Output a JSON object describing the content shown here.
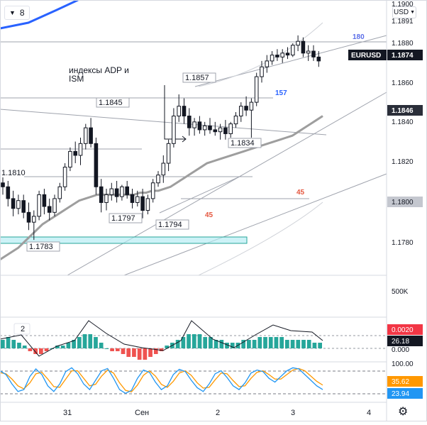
{
  "toolbar": {
    "interval": "8",
    "currency": "USD"
  },
  "price_axis": {
    "ticks": [
      "1.1900",
      "1.1891",
      "1.1880",
      "1.1860",
      "1.1840",
      "1.1820",
      "1.1800",
      "1.1780"
    ],
    "badges": [
      {
        "name": "last-price-badge",
        "label": "EURUSD",
        "value": "1.1874",
        "bg": "#131722",
        "fg": "#ffffff"
      },
      {
        "name": "level-1846-badge",
        "value": "1.1846",
        "bg": "#2a2e39",
        "fg": "#ffffff"
      },
      {
        "name": "level-1800-badge",
        "value": "1.1800",
        "bg": "#c4c7cf",
        "fg": "#131722"
      }
    ]
  },
  "annotations": {
    "text_note": [
      "индексы ADP  и",
      "ISM"
    ],
    "level_labels": [
      "1.1845",
      "1.1857",
      "1.1810",
      "1.1834",
      "1.1797",
      "1.1794",
      "1.1783"
    ],
    "angle_labels": [
      {
        "text": "180",
        "color": "#5b6ee8"
      },
      {
        "text": "157",
        "color": "#2962ff"
      },
      {
        "text": "45",
        "color": "#e5573f"
      },
      {
        "text": "45",
        "color": "#e5573f"
      }
    ]
  },
  "volume_pane": {
    "axis_label": "500K"
  },
  "macd_pane": {
    "legend": "2",
    "axis_label": "0.000",
    "badges": [
      "0.0020",
      "26.18"
    ],
    "badge_colors": [
      "#f23645",
      "#131722"
    ]
  },
  "stoch_pane": {
    "axis_label": "100.00",
    "badges": [
      "35.62",
      "23.94"
    ],
    "badge_colors": [
      "#ff9800",
      "#2196f3"
    ]
  },
  "time_axis": {
    "labels": [
      "31",
      "Сен",
      "2",
      "3",
      "4"
    ]
  },
  "colors": {
    "up": "#131722",
    "down": "#131722",
    "macd_up": "#26a69a",
    "macd_down": "#ef5350",
    "ma": "#9e9e9e"
  },
  "chart_data": {
    "type": "candlestick",
    "symbol": "EURUSD",
    "y_range": [
      1.1765,
      1.1905
    ],
    "candles": [
      [
        1.1812,
        1.1815,
        1.1806,
        1.181
      ],
      [
        1.181,
        1.1813,
        1.18,
        1.1804
      ],
      [
        1.1804,
        1.1808,
        1.1795,
        1.1799
      ],
      [
        1.1799,
        1.1806,
        1.1796,
        1.1803
      ],
      [
        1.1803,
        1.1806,
        1.1794,
        1.1797
      ],
      [
        1.1797,
        1.1802,
        1.1788,
        1.1792
      ],
      [
        1.1792,
        1.1798,
        1.1783,
        1.1795
      ],
      [
        1.1795,
        1.1808,
        1.1793,
        1.1806
      ],
      [
        1.1806,
        1.1809,
        1.1796,
        1.18
      ],
      [
        1.18,
        1.1804,
        1.1793,
        1.1797
      ],
      [
        1.1797,
        1.1806,
        1.1795,
        1.1804
      ],
      [
        1.1804,
        1.1812,
        1.1802,
        1.181
      ],
      [
        1.181,
        1.1822,
        1.1808,
        1.182
      ],
      [
        1.182,
        1.183,
        1.1818,
        1.1828
      ],
      [
        1.1828,
        1.1833,
        1.1822,
        1.1826
      ],
      [
        1.1826,
        1.1835,
        1.1821,
        1.1832
      ],
      [
        1.1832,
        1.1842,
        1.1829,
        1.184
      ],
      [
        1.184,
        1.1845,
        1.183,
        1.1832
      ],
      [
        1.1832,
        1.1835,
        1.1806,
        1.181
      ],
      [
        1.181,
        1.1814,
        1.1797,
        1.1802
      ],
      [
        1.1802,
        1.1809,
        1.1798,
        1.1806
      ],
      [
        1.1806,
        1.1812,
        1.1803,
        1.1809
      ],
      [
        1.1809,
        1.1813,
        1.1802,
        1.1805
      ],
      [
        1.1805,
        1.1811,
        1.1803,
        1.181
      ],
      [
        1.181,
        1.1813,
        1.1804,
        1.1806
      ],
      [
        1.1806,
        1.1809,
        1.1799,
        1.1802
      ],
      [
        1.1802,
        1.1808,
        1.18,
        1.1805
      ],
      [
        1.1805,
        1.1809,
        1.1794,
        1.1798
      ],
      [
        1.1798,
        1.1806,
        1.1796,
        1.1804
      ],
      [
        1.1804,
        1.1814,
        1.1802,
        1.1812
      ],
      [
        1.1812,
        1.1818,
        1.181,
        1.1816
      ],
      [
        1.1816,
        1.1826,
        1.1812,
        1.1822
      ],
      [
        1.1822,
        1.1834,
        1.1818,
        1.1832
      ],
      [
        1.1832,
        1.185,
        1.183,
        1.1846
      ],
      [
        1.1846,
        1.1857,
        1.1843,
        1.1851
      ],
      [
        1.1851,
        1.1855,
        1.1842,
        1.1846
      ],
      [
        1.1846,
        1.185,
        1.1836,
        1.184
      ],
      [
        1.184,
        1.1845,
        1.1836,
        1.1843
      ],
      [
        1.1843,
        1.1846,
        1.1837,
        1.1839
      ],
      [
        1.1839,
        1.1843,
        1.1836,
        1.1841
      ],
      [
        1.1841,
        1.1845,
        1.1837,
        1.1839
      ],
      [
        1.1839,
        1.1843,
        1.1836,
        1.1838
      ],
      [
        1.1838,
        1.1842,
        1.1834,
        1.184
      ],
      [
        1.184,
        1.1844,
        1.1834,
        1.1837
      ],
      [
        1.1837,
        1.1843,
        1.1835,
        1.1842
      ],
      [
        1.1842,
        1.1848,
        1.184,
        1.1846
      ],
      [
        1.1846,
        1.1853,
        1.1843,
        1.1851
      ],
      [
        1.1851,
        1.1856,
        1.1846,
        1.1849
      ],
      [
        1.1849,
        1.1855,
        1.1835,
        1.1853
      ],
      [
        1.1853,
        1.1868,
        1.1851,
        1.1866
      ],
      [
        1.1866,
        1.1874,
        1.1863,
        1.1871
      ],
      [
        1.1871,
        1.1877,
        1.1868,
        1.1874
      ],
      [
        1.1874,
        1.1879,
        1.1872,
        1.1877
      ],
      [
        1.1877,
        1.188,
        1.1874,
        1.1876
      ],
      [
        1.1876,
        1.188,
        1.1873,
        1.1878
      ],
      [
        1.1878,
        1.1881,
        1.1875,
        1.1877
      ],
      [
        1.1877,
        1.1883,
        1.1876,
        1.1882
      ],
      [
        1.1882,
        1.1887,
        1.1879,
        1.1884
      ],
      [
        1.1884,
        1.1886,
        1.1876,
        1.1878
      ],
      [
        1.1878,
        1.1882,
        1.1874,
        1.1879
      ],
      [
        1.1879,
        1.1882,
        1.1874,
        1.1876
      ],
      [
        1.1876,
        1.1879,
        1.1871,
        1.1874
      ]
    ],
    "moving_average": [
      1.1773,
      1.1775,
      1.1777,
      1.1779,
      1.1782,
      1.1785,
      1.1788,
      1.1791,
      1.1793,
      1.1795,
      1.1797,
      1.1799,
      1.1801,
      1.1803,
      1.1804,
      1.1805,
      1.1806,
      1.1806,
      1.1806,
      1.1806,
      1.1806,
      1.1806,
      1.1806,
      1.1807,
      1.1807,
      1.1808,
      1.1808,
      1.1809,
      1.181,
      1.1812,
      1.1814,
      1.1816,
      1.1818,
      1.182,
      1.1822,
      1.1823,
      1.1824,
      1.1825,
      1.1826,
      1.1827,
      1.1828,
      1.1829,
      1.183,
      1.1831,
      1.1832,
      1.1833,
      1.1834,
      1.1835,
      1.1836,
      1.1838,
      1.184,
      1.1842,
      1.1844,
      1.1846
    ],
    "macd_histogram": [
      3,
      4,
      3,
      2,
      1,
      -1,
      -2,
      -2,
      -1,
      0,
      1,
      1,
      2,
      3,
      4,
      5,
      5,
      4,
      2,
      0,
      -1,
      -1,
      -2,
      -3,
      -3,
      -4,
      -4,
      -3,
      -2,
      -1,
      1,
      2,
      3,
      4,
      5,
      5,
      5,
      4,
      4,
      3,
      3,
      2,
      2,
      2,
      3,
      3,
      3,
      4,
      4,
      4,
      4,
      4,
      3,
      3,
      3,
      3,
      3,
      2,
      2
    ],
    "stoch_k": [
      80,
      70,
      45,
      25,
      30,
      65,
      85,
      70,
      40,
      25,
      45,
      78,
      88,
      72,
      45,
      30,
      55,
      80,
      86,
      60,
      30,
      20,
      28,
      60,
      82,
      76,
      50,
      30,
      40,
      70,
      84,
      78,
      55,
      35,
      25,
      45,
      72,
      80,
      62,
      40,
      30,
      48,
      74,
      82,
      78,
      60,
      50,
      65,
      80,
      88,
      85,
      70,
      55,
      40,
      30
    ],
    "stoch_d": [
      75,
      72,
      58,
      40,
      32,
      48,
      72,
      76,
      58,
      38,
      36,
      58,
      80,
      80,
      60,
      40,
      44,
      66,
      82,
      74,
      48,
      28,
      24,
      42,
      68,
      80,
      66,
      44,
      36,
      52,
      74,
      80,
      68,
      48,
      34,
      36,
      56,
      74,
      72,
      54,
      38,
      40,
      60,
      76,
      80,
      70,
      58,
      58,
      70,
      82,
      86,
      80,
      66,
      52,
      42
    ]
  }
}
